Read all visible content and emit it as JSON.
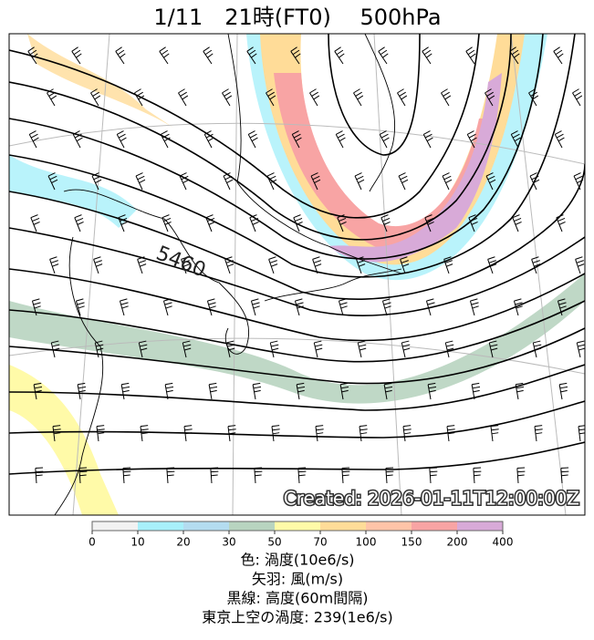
{
  "title": "1/11　21時(FT0)　 500hPa",
  "contour_label": "5460",
  "created": "Created: 2026-01-11T12:00:00Z",
  "colorbar": {
    "ticks": [
      0,
      10,
      20,
      30,
      50,
      70,
      100,
      150,
      200,
      400
    ],
    "colors": [
      "#f2f2f2",
      "#a8f0fa",
      "#b4dcf0",
      "#b8d4c0",
      "#fffaa8",
      "#ffdc98",
      "#ffc4a8",
      "#f8a4a4",
      "#d8aad8"
    ]
  },
  "legend": [
    "色: 渦度(10e6/s)",
    "矢羽: 風(m/s)",
    "黒線: 高度(60m間隔)",
    "東京上空の渦度: 239(1e6/s)"
  ]
}
